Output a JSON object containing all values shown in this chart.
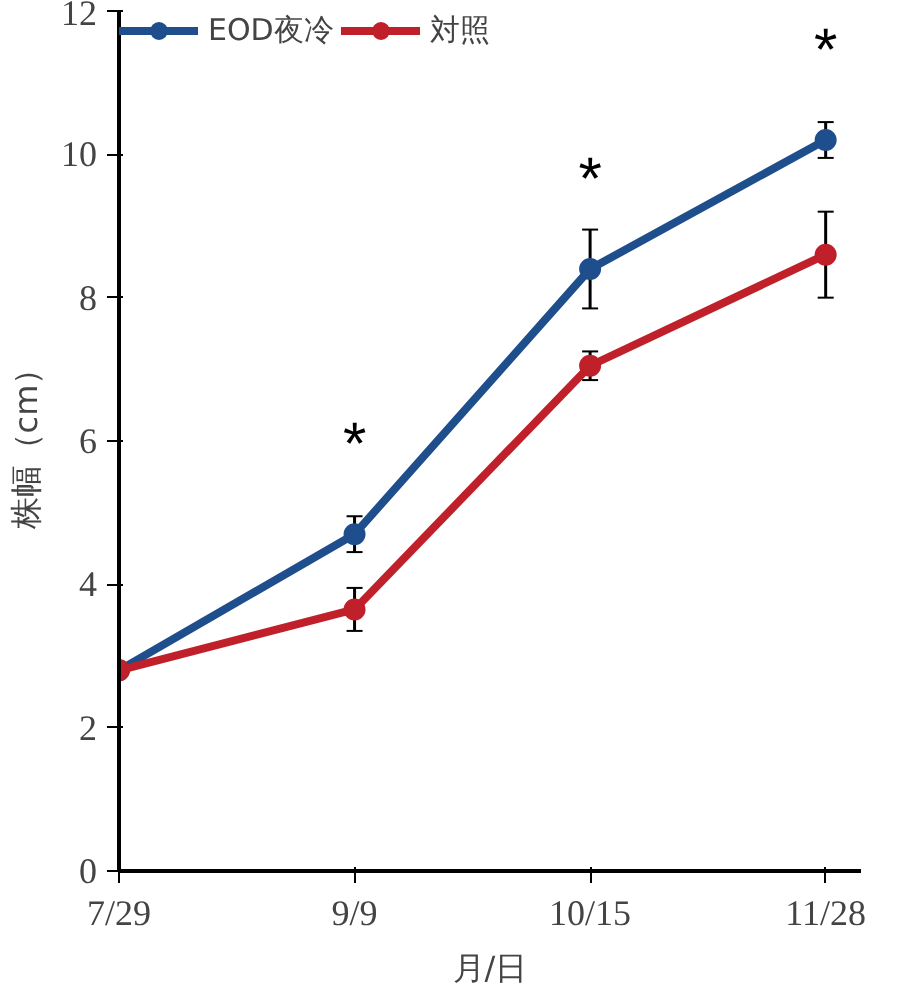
{
  "chart_data": {
    "type": "line",
    "xlabel": "月/日",
    "ylabel": "株幅（cm）",
    "categories": [
      "7/29",
      "9/9",
      "10/15",
      "11/28"
    ],
    "series": [
      {
        "name": "EOD夜冷",
        "color": "#1f4e8c",
        "values": [
          2.8,
          4.7,
          8.4,
          10.2
        ],
        "errors": [
          null,
          0.25,
          0.55,
          0.25
        ]
      },
      {
        "name": "対照",
        "color": "#c0202a",
        "values": [
          2.8,
          3.65,
          7.05,
          8.6
        ],
        "errors": [
          null,
          0.3,
          0.2,
          0.6
        ]
      }
    ],
    "ylim": [
      0,
      12
    ],
    "yticks": [
      0,
      2,
      4,
      6,
      8,
      10,
      12
    ],
    "grid": false,
    "legend": "top",
    "marker": "circle",
    "line_style": "solid",
    "annotations": [
      {
        "text": "*",
        "x": "9/9",
        "y": 4.7
      },
      {
        "text": "*",
        "x": "10/15",
        "y": 8.4
      },
      {
        "text": "*",
        "x": "11/28",
        "y": 10.2
      }
    ]
  }
}
